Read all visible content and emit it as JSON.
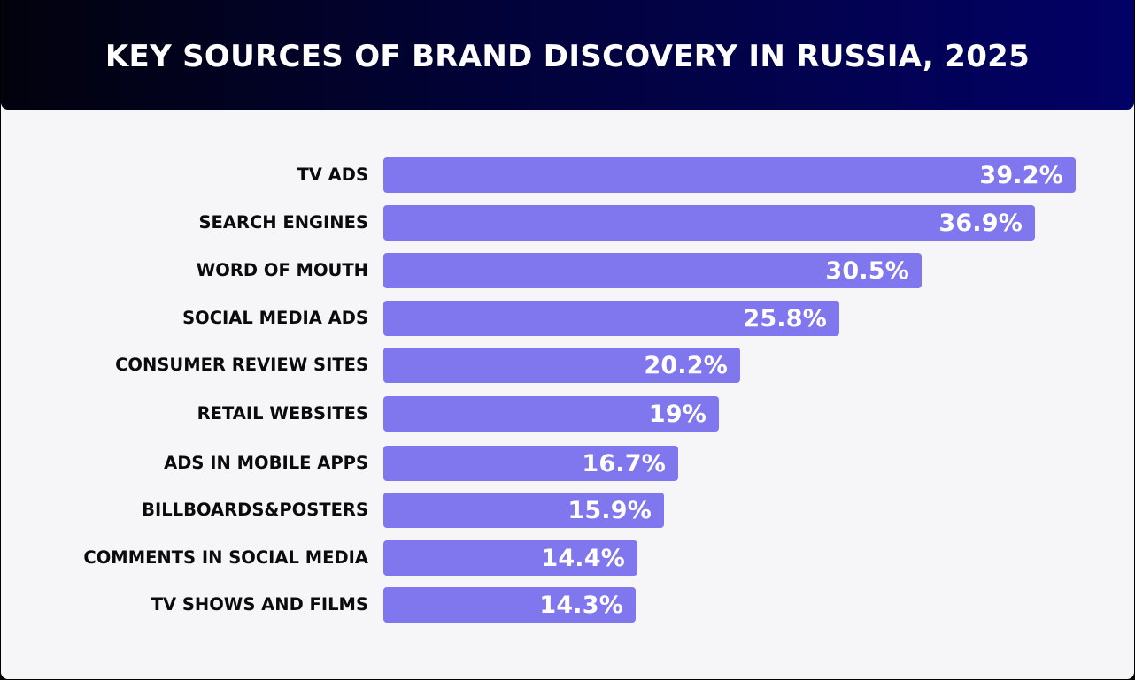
{
  "header": {
    "title": "KEY SOURCES OF BRAND DISCOVERY IN RUSSIA, 2025"
  },
  "colors": {
    "bar": "#8077ee",
    "background": "#f6f6f9",
    "header_start": "#02020d",
    "header_end": "#020166"
  },
  "chart_data": {
    "type": "bar",
    "orientation": "horizontal",
    "title": "KEY SOURCES OF BRAND DISCOVERY IN RUSSIA, 2025",
    "xlabel": "",
    "ylabel": "",
    "grid": false,
    "legend": "none",
    "categories": [
      "TV ADS",
      "SEARCH ENGINES",
      "WORD OF MOUTH",
      "SOCIAL MEDIA ADS",
      "CONSUMER REVIEW SITES",
      "RETAIL WEBSITES",
      "ADS IN MOBILE APPS",
      "BILLBOARDS&POSTERS",
      "COMMENTS IN SOCIAL MEDIA",
      "TV SHOWS AND FILMS"
    ],
    "values": [
      39.2,
      36.9,
      30.5,
      25.8,
      20.2,
      19,
      16.7,
      15.9,
      14.4,
      14.3
    ],
    "value_labels": [
      "39.2%",
      "36.9%",
      "30.5%",
      "25.8%",
      "20.2%",
      "19%",
      "16.7%",
      "15.9%",
      "14.4%",
      "14.3%"
    ],
    "unit": "%"
  }
}
